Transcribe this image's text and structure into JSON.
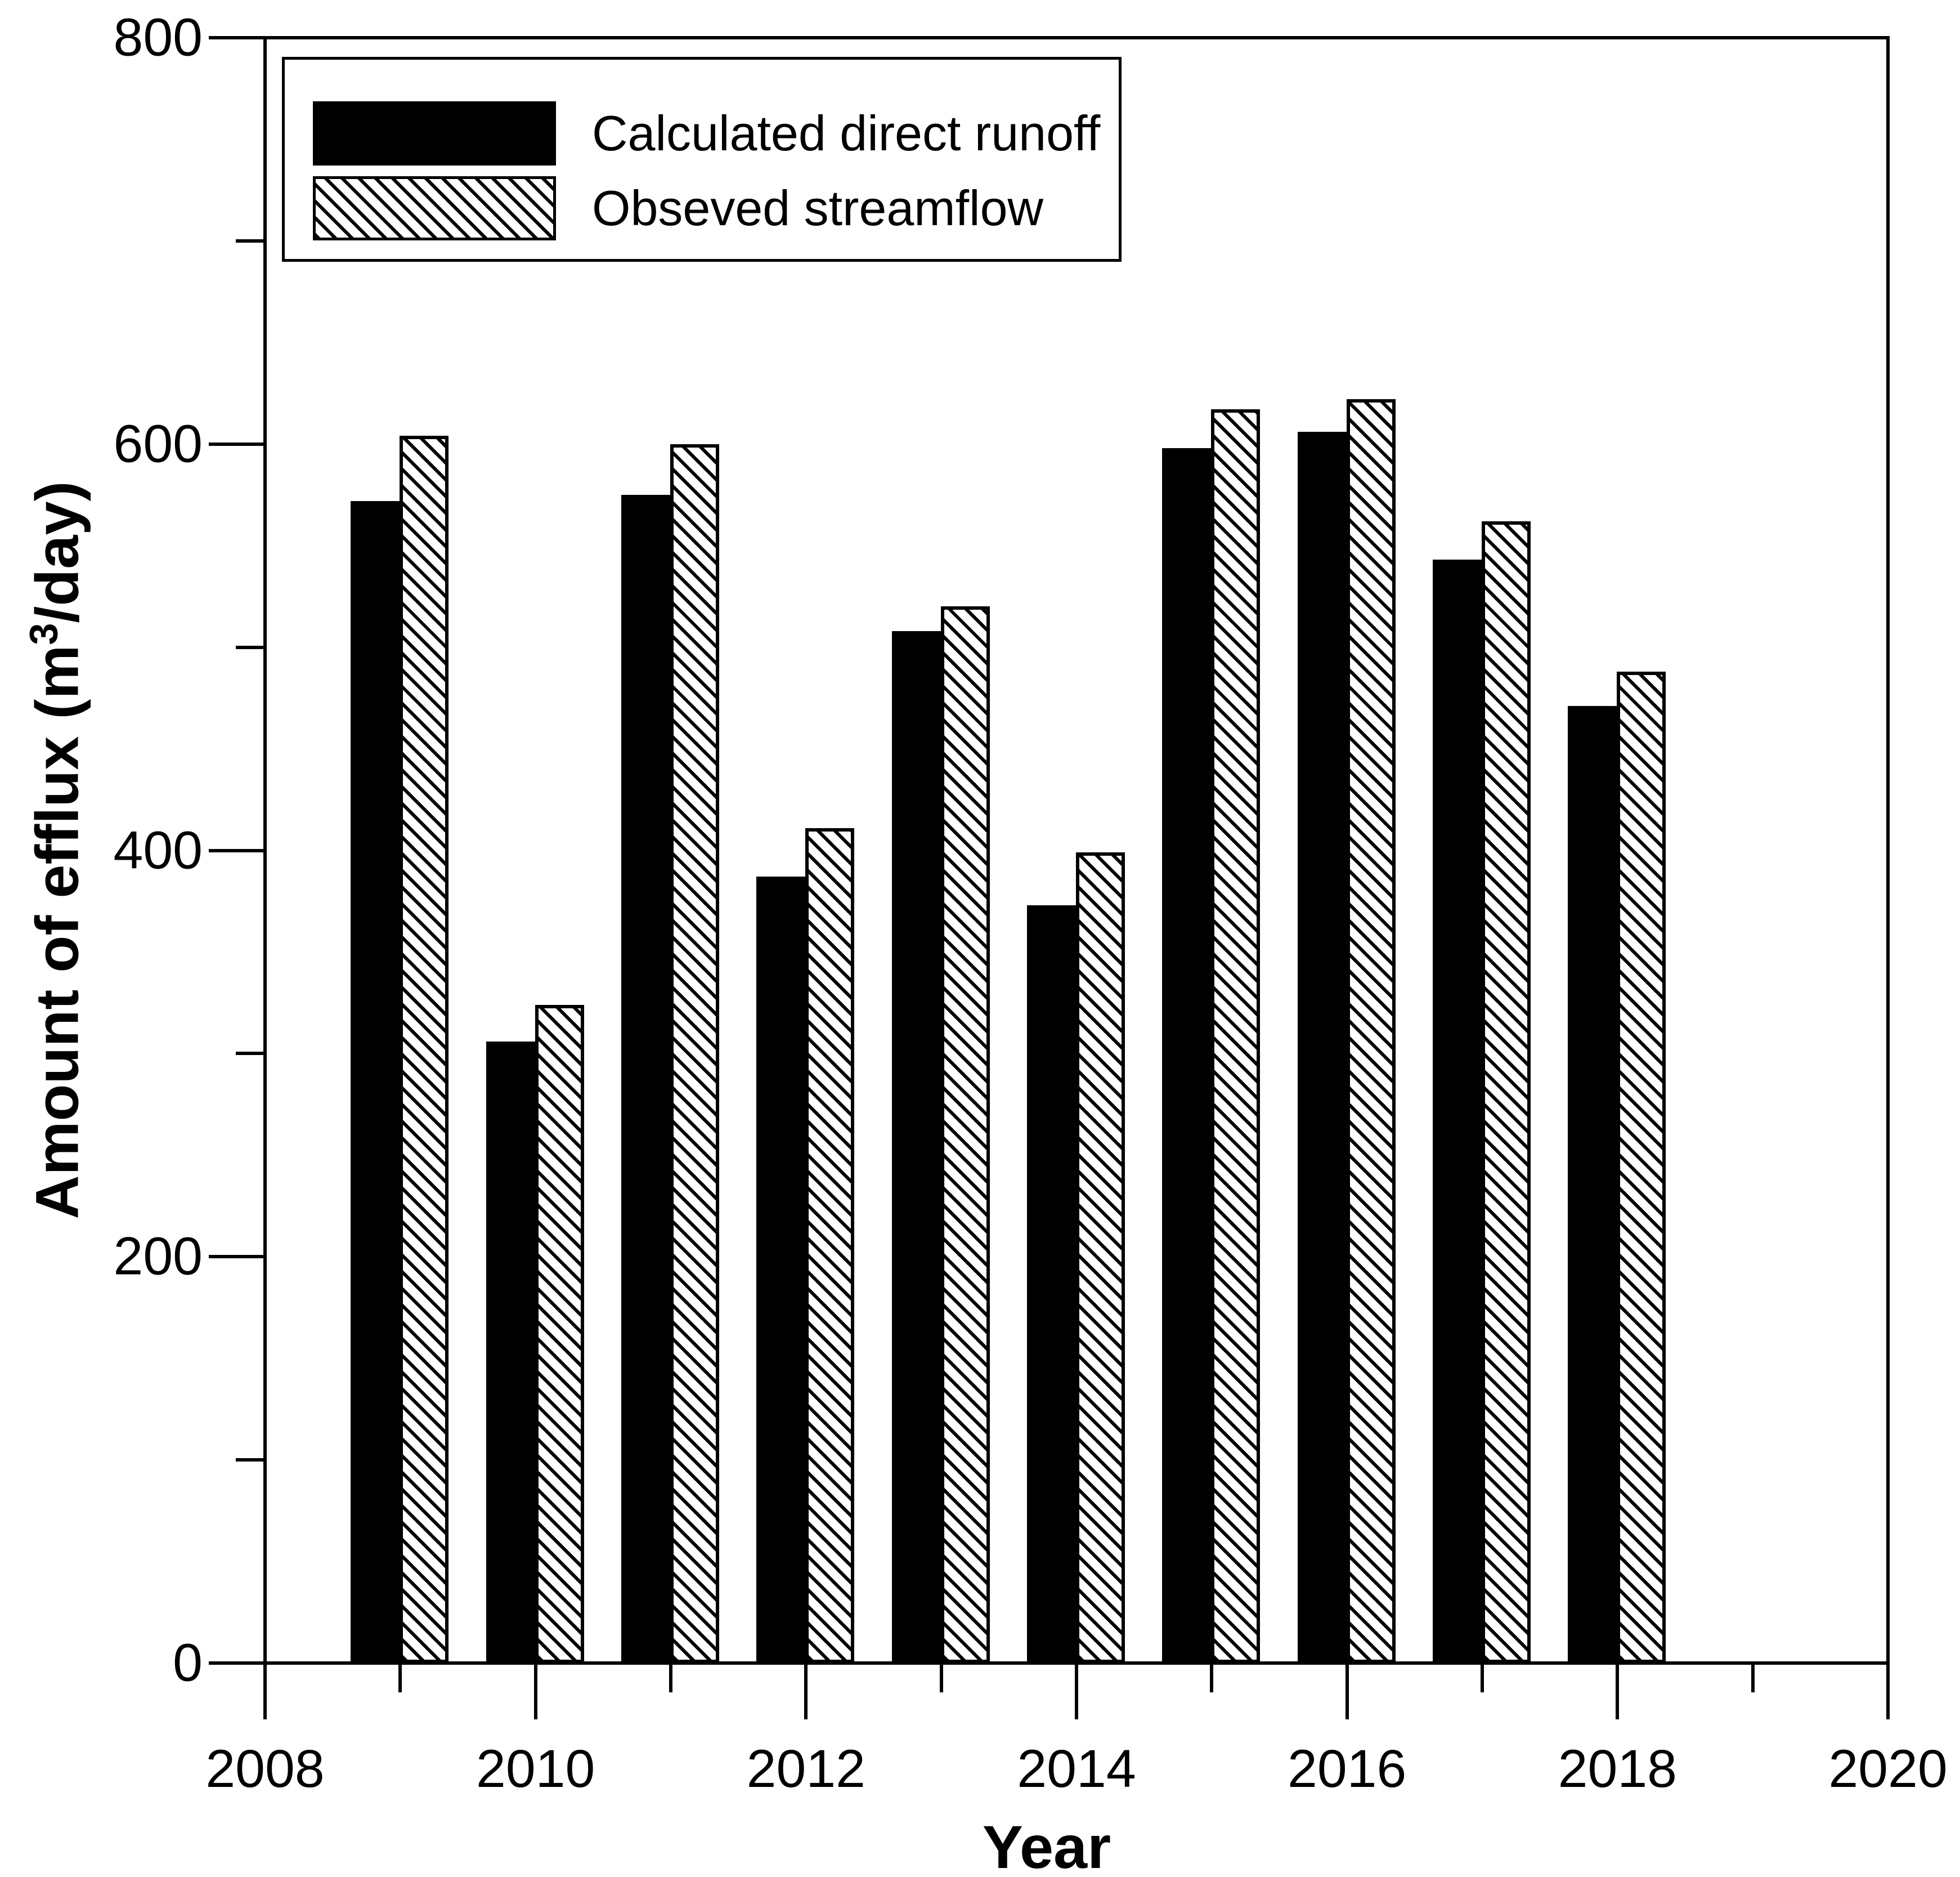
{
  "legend": {
    "entries": [
      {
        "label": "Calculated direct runoff",
        "swatch": "solid-black"
      },
      {
        "label": "Obseved streamflow",
        "swatch": "diagonal-hatch"
      }
    ]
  },
  "axes": {
    "x_title": "Year",
    "y_title": "Amount of efflux (m³/day)",
    "x_tick_labels": [
      "2008",
      "2010",
      "2012",
      "2014",
      "2016",
      "2018",
      "2020"
    ],
    "y_tick_labels": [
      "0",
      "200",
      "400",
      "600",
      "800"
    ]
  },
  "colors": {
    "foreground": "#000000",
    "background": "#ffffff"
  },
  "chart_data": {
    "type": "bar",
    "title": "",
    "xlabel": "Year",
    "ylabel": "Amount of efflux (m³/day)",
    "categories": [
      2009,
      2010,
      2011,
      2012,
      2013,
      2014,
      2015,
      2016,
      2017,
      2018
    ],
    "series": [
      {
        "name": "Calculated direct runoff",
        "style": "solid-black",
        "values": [
          572,
          306,
          575,
          387,
          508,
          373,
          598,
          606,
          543,
          471
        ]
      },
      {
        "name": "Obseved streamflow",
        "style": "diagonal-hatch",
        "values": [
          604,
          324,
          600,
          411,
          520,
          399,
          617,
          622,
          562,
          488
        ]
      }
    ],
    "xlim": [
      2008,
      2020
    ],
    "ylim": [
      0,
      800
    ],
    "x_major_ticks": [
      2008,
      2010,
      2012,
      2014,
      2016,
      2018,
      2020
    ],
    "x_minor_ticks": [
      2009,
      2011,
      2013,
      2015,
      2017,
      2019
    ],
    "y_major_ticks": [
      0,
      200,
      400,
      600,
      800
    ],
    "y_minor_ticks": [
      100,
      300,
      500,
      700
    ],
    "grid": false,
    "legend_position": "upper-left-inside"
  }
}
